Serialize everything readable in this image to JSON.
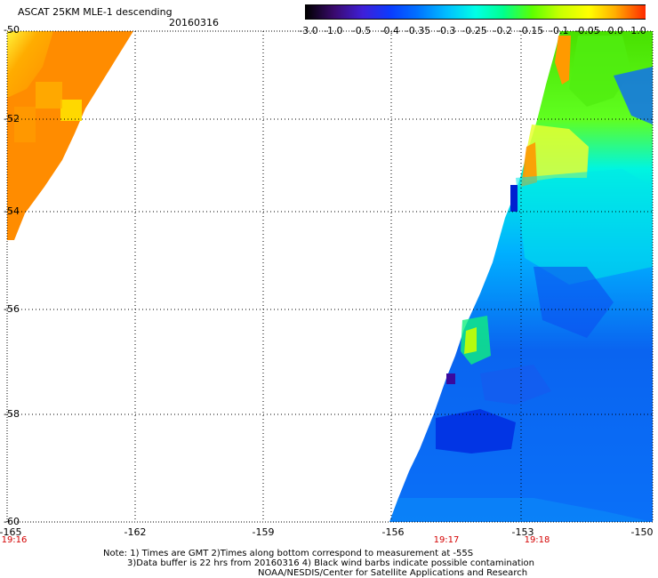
{
  "header": {
    "title": "ASCAT 25KM MLE-1 descending",
    "date": "20160316"
  },
  "colorbar": {
    "labels": [
      "-3.0",
      "-1.0",
      "-0.5",
      "-0.4",
      "-0.35",
      "-0.3",
      "-0.25",
      "-0.2",
      "-0.15",
      "-0.1",
      "-0.05",
      "0.0",
      "1.0"
    ],
    "colors": [
      "#000000",
      "#3a0a6e",
      "#3f1fd8",
      "#0a3cff",
      "#0076ff",
      "#00bfff",
      "#00ffe6",
      "#00ff8c",
      "#5cff00",
      "#c8ff00",
      "#ffff00",
      "#ffa800",
      "#ff2a00"
    ]
  },
  "axes": {
    "lat_labels": [
      "-50",
      "-52",
      "-54",
      "-56",
      "-58",
      "-60"
    ],
    "lon_labels": [
      "-165",
      "-162",
      "-159",
      "-156",
      "-153",
      "-150"
    ],
    "time_labels": [
      "19:16",
      "19:17",
      "19:18"
    ]
  },
  "swath_colors": {
    "orange": "#ff8c00",
    "yellow_orange": "#ffc000",
    "yellow": "#ffff00",
    "green": "#44e800",
    "cyan": "#00f0e0",
    "light_blue": "#0096ff",
    "blue": "#1060f0",
    "deep_blue": "#0030e0"
  },
  "notes": {
    "line1": "Note: 1) Times are GMT 2)Times along bottom correspond to measurement at -55S",
    "line2": "3)Data buffer is 22 hrs from 20160316 4) Black wind barbs indicate possible contamination",
    "line3": "NOAA/NESDIS/Center for Satellite Applications and Research"
  }
}
